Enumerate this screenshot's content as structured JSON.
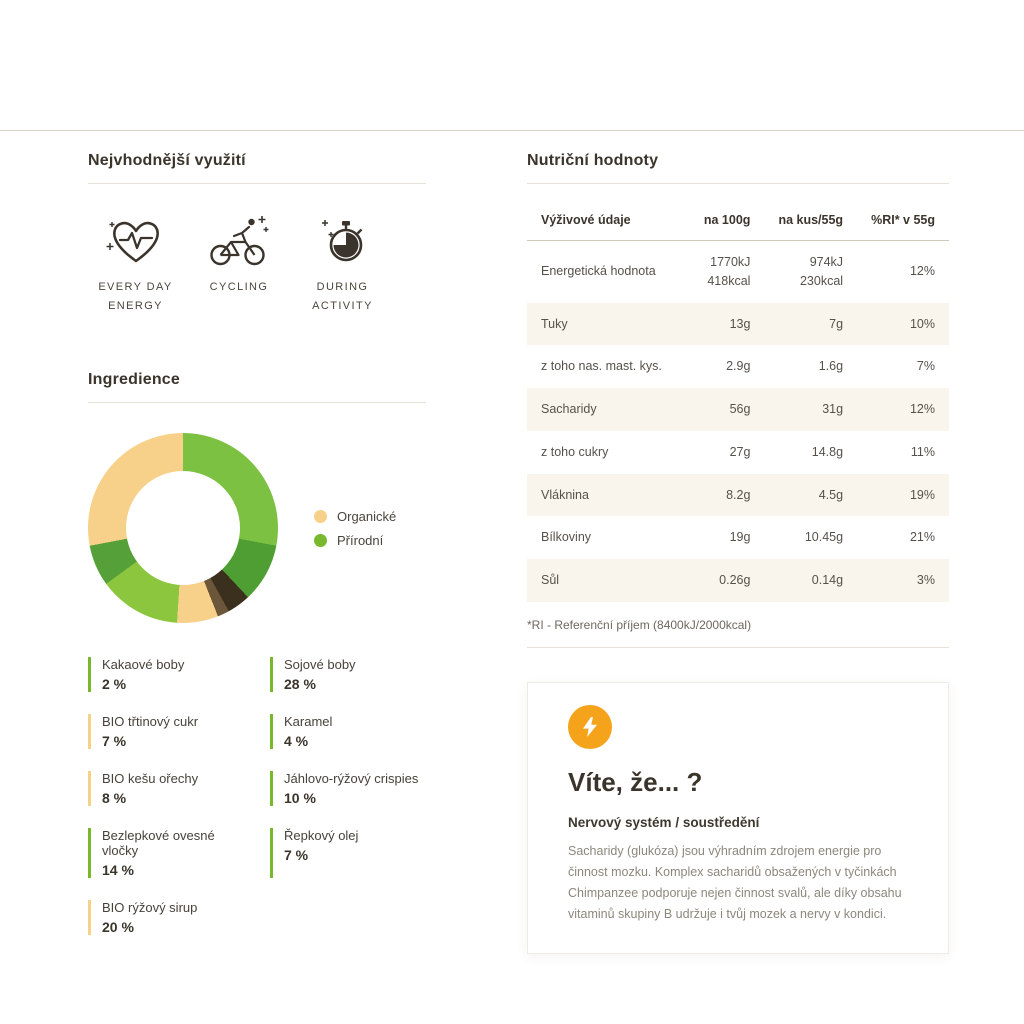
{
  "usage": {
    "title": "Nejvhodnější využití",
    "items": [
      {
        "icon": "heart-pulse-icon",
        "label": "EVERY DAY ENERGY"
      },
      {
        "icon": "cycling-icon",
        "label": "CYCLING"
      },
      {
        "icon": "stopwatch-icon",
        "label": "DURING ACTIVITY"
      }
    ]
  },
  "ingredients": {
    "title": "Ingredience",
    "legend": [
      {
        "label": "Organické",
        "color": "#f7d189"
      },
      {
        "label": "Přírodní",
        "color": "#77b82d"
      }
    ],
    "items": [
      {
        "name": "Kakaové boby",
        "value": "2 %",
        "color": "#77b82d"
      },
      {
        "name": "Sojové boby",
        "value": "28 %",
        "color": "#77b82d"
      },
      {
        "name": "BIO třtinový cukr",
        "value": "7 %",
        "color": "#f7d189"
      },
      {
        "name": "Karamel",
        "value": "4 %",
        "color": "#77b82d"
      },
      {
        "name": "BIO kešu ořechy",
        "value": "8 %",
        "color": "#f7d189"
      },
      {
        "name": "Jáhlovo-rýžový crispies",
        "value": "10 %",
        "color": "#77b82d"
      },
      {
        "name": "Bezlepkové ovesné vločky",
        "value": "14 %",
        "color": "#77b82d"
      },
      {
        "name": "Řepkový olej",
        "value": "7 %",
        "color": "#77b82d"
      },
      {
        "name": "BIO rýžový sirup",
        "value": "20 %",
        "color": "#f7d189"
      }
    ]
  },
  "chart_data": {
    "type": "pie",
    "title": "Ingredience",
    "donut": true,
    "legend_position": "right",
    "legend": [
      "Organické",
      "Přírodní"
    ],
    "categories": [
      "Sojové boby",
      "Jáhlovo-rýžový crispies",
      "Karamel",
      "Kakaové boby",
      "BIO třtinový cukr",
      "Bezlepkové ovesné vločky",
      "Řepkový olej",
      "BIO kešu ořechy",
      "BIO rýžový sirup"
    ],
    "values": [
      28,
      10,
      4,
      2,
      7,
      14,
      7,
      8,
      20
    ],
    "colors": [
      "#7cc142",
      "#4f9e33",
      "#3b2f1e",
      "#6b5639",
      "#f7d189",
      "#8cc63f",
      "#55a038",
      "#f7d189",
      "#f7d189"
    ]
  },
  "nutrition": {
    "title": "Nutriční hodnoty",
    "table": {
      "headers": [
        "Výživové údaje",
        "na 100g",
        "na kus/55g",
        "%RI* v 55g"
      ],
      "rows": [
        [
          "Energetická hodnota",
          "1770kJ\n418kcal",
          "974kJ\n230kcal",
          "12%"
        ],
        [
          "Tuky",
          "13g",
          "7g",
          "10%"
        ],
        [
          "z toho nas. mast. kys.",
          "2.9g",
          "1.6g",
          "7%"
        ],
        [
          "Sacharidy",
          "56g",
          "31g",
          "12%"
        ],
        [
          "z toho cukry",
          "27g",
          "14.8g",
          "11%"
        ],
        [
          "Vláknina",
          "8.2g",
          "4.5g",
          "19%"
        ],
        [
          "Bílkoviny",
          "19g",
          "10.45g",
          "21%"
        ],
        [
          "Sůl",
          "0.26g",
          "0.14g",
          "3%"
        ]
      ]
    },
    "footnote": "*RI - Referenční příjem (8400kJ/2000kcal)"
  },
  "fact_card": {
    "icon": "lightning-icon",
    "icon_color": "#f6a31c",
    "title": "Víte, že... ?",
    "subtitle": "Nervový systém / soustředění",
    "body": "Sacharidy (glukóza) jsou výhradním zdrojem energie pro činnost mozku. Komplex sacharidů obsažených v tyčinkách Chimpanzee podporuje nejen činnost svalů, ale díky obsahu vitaminů skupiny B udržuje i tvůj mozek a nervy v kondici."
  }
}
